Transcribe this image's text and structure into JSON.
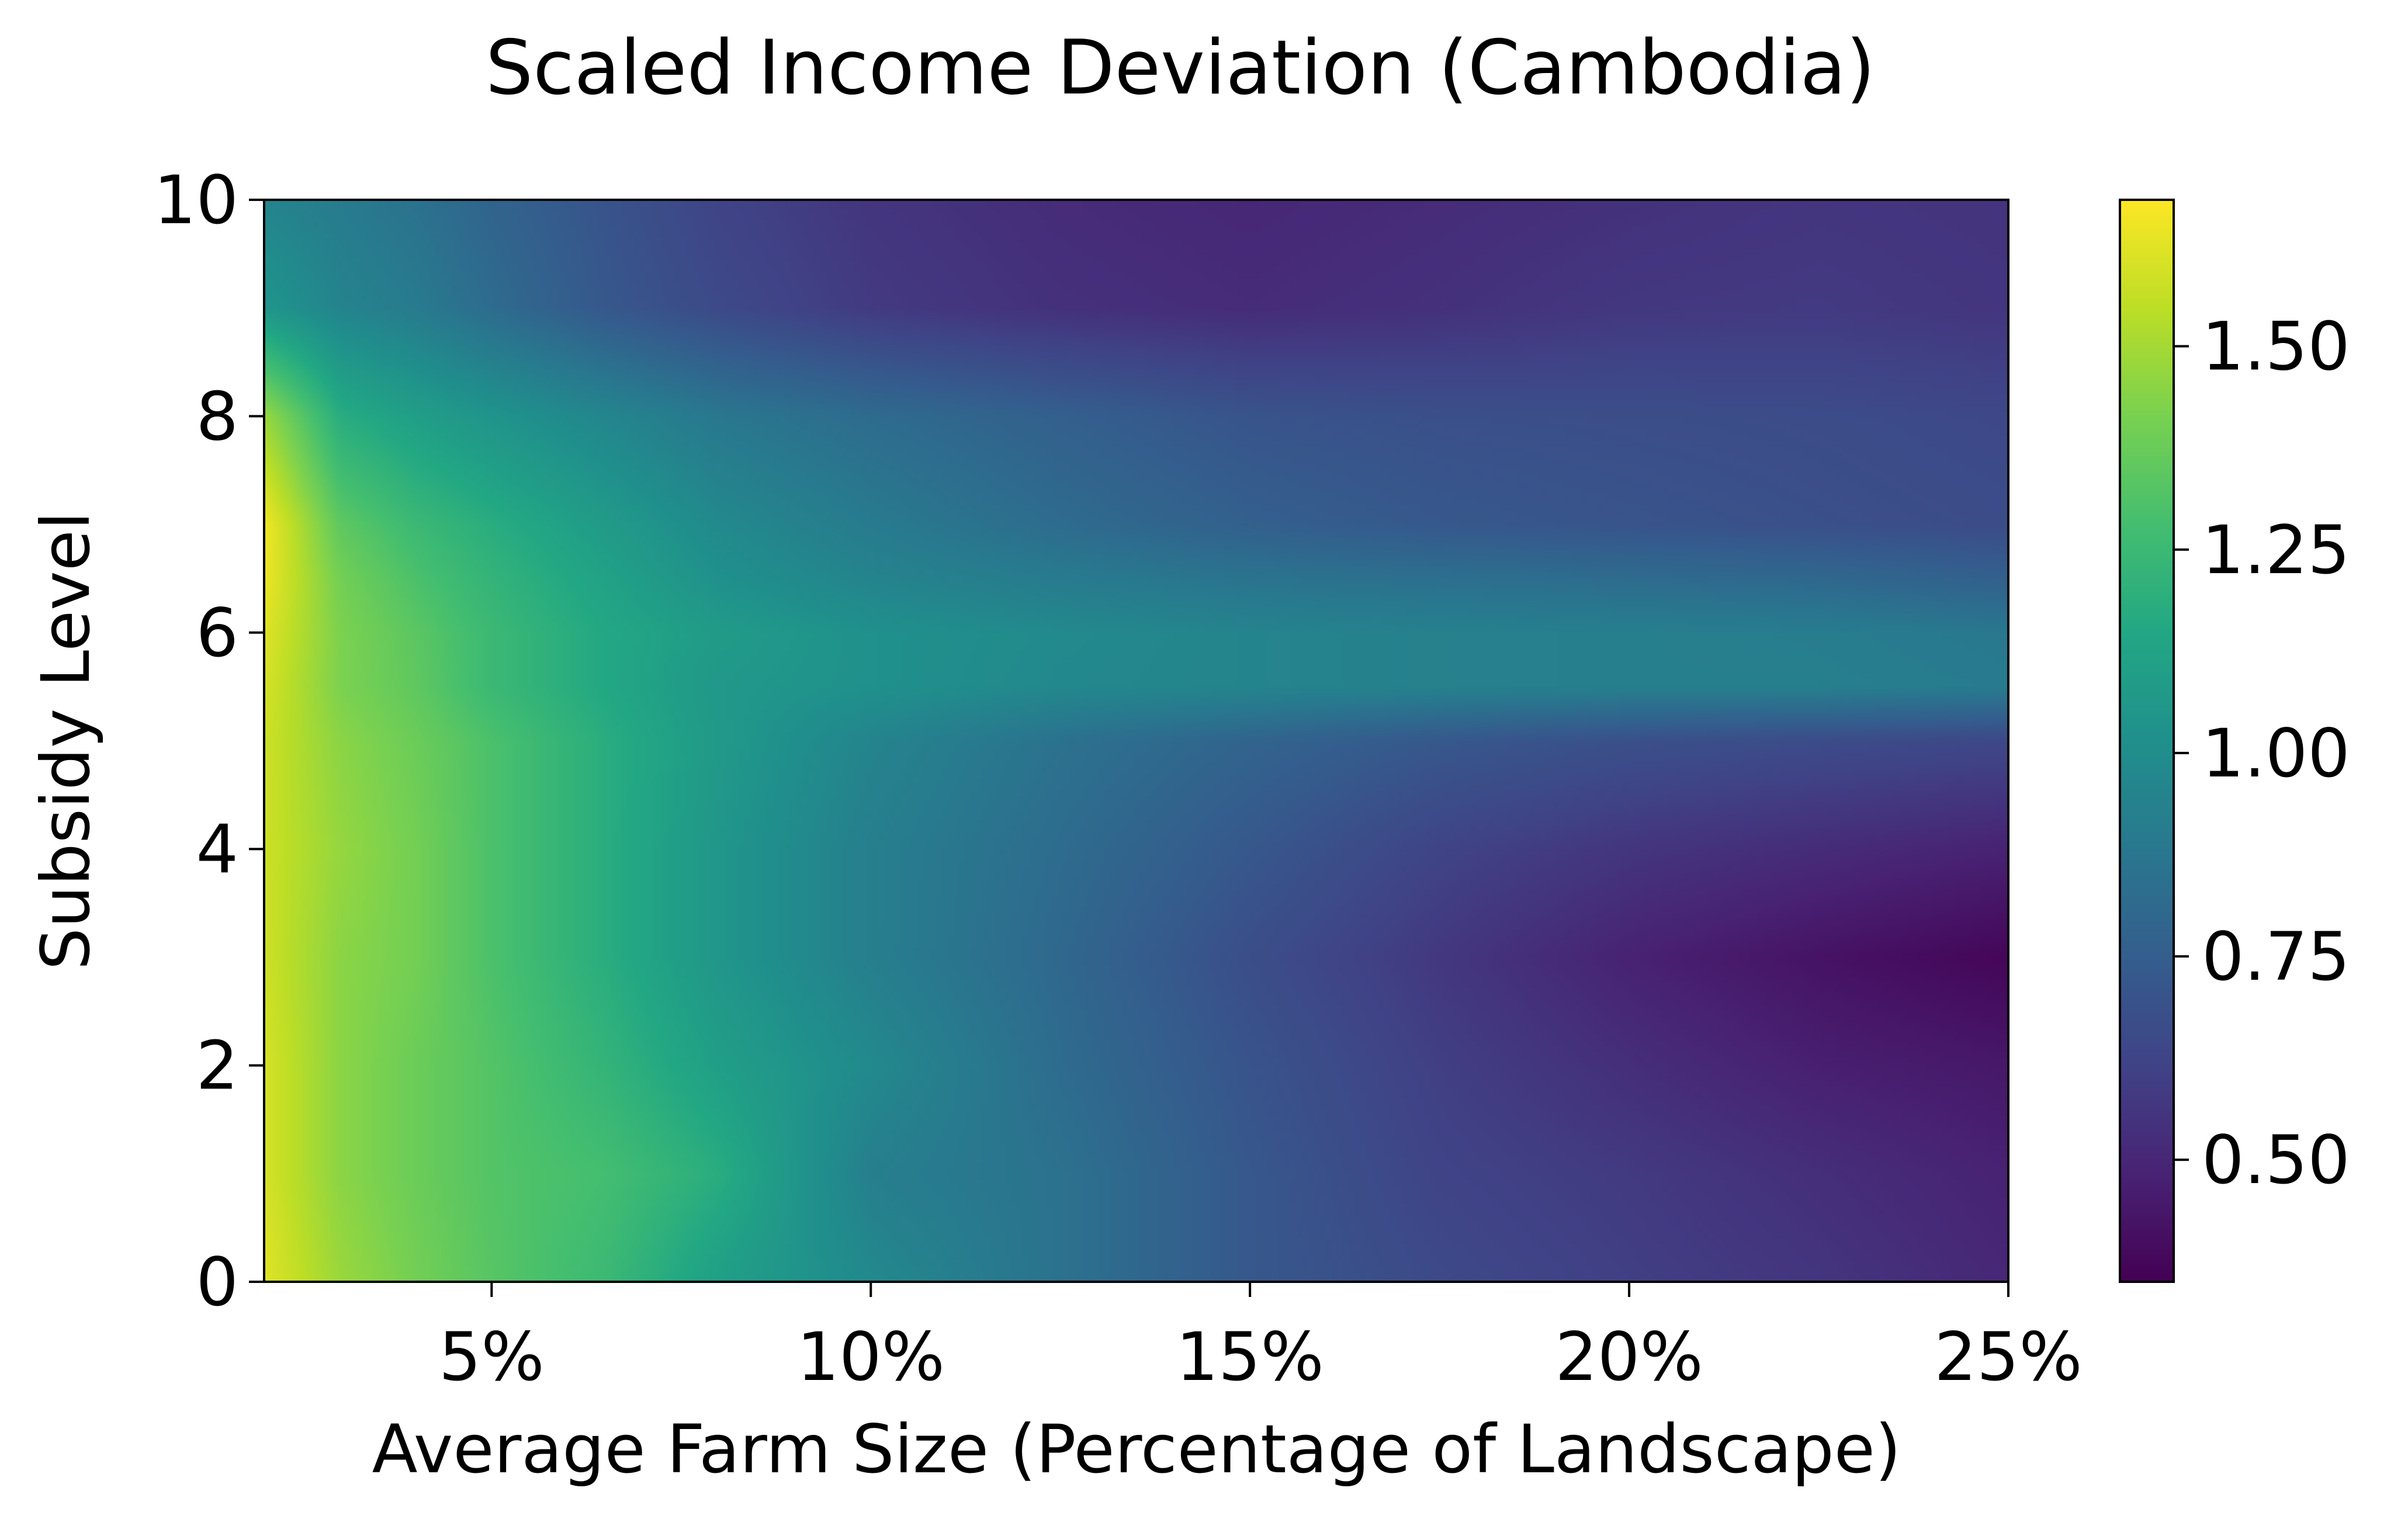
{
  "chart_data": {
    "type": "heatmap",
    "title": "Scaled Income Deviation (Cambodia)",
    "xlabel": "Average Farm Size (Percentage of Landscape)",
    "ylabel": "Subsidy Level",
    "xlim": [
      2,
      25
    ],
    "ylim": [
      0,
      10
    ],
    "xticks": [
      5,
      10,
      15,
      20,
      25
    ],
    "xtick_labels": [
      "5%",
      "10%",
      "15%",
      "20%",
      "25%"
    ],
    "yticks": [
      0,
      2,
      4,
      6,
      8,
      10
    ],
    "ytick_labels": [
      "0",
      "2",
      "4",
      "6",
      "8",
      "10"
    ],
    "colormap": "viridis",
    "color_range": [
      0.35,
      1.68
    ],
    "colorbar_ticks": [
      0.5,
      0.75,
      1.0,
      1.25,
      1.5
    ],
    "colorbar_tick_labels": [
      "0.50",
      "0.75",
      "1.00",
      "1.25",
      "1.50"
    ],
    "x": [
      2,
      3,
      4,
      5,
      6.5,
      8,
      10,
      12.5,
      15,
      17.5,
      20,
      22.5,
      25
    ],
    "y": [
      0,
      1,
      2,
      3,
      4,
      5,
      5.5,
      6,
      6.5,
      7,
      8,
      9,
      10
    ],
    "z": [
      [
        1.62,
        1.48,
        1.4,
        1.33,
        1.25,
        1.1,
        0.98,
        0.85,
        0.72,
        0.65,
        0.6,
        0.56,
        0.5
      ],
      [
        1.6,
        1.45,
        1.38,
        1.32,
        1.28,
        1.18,
        0.92,
        0.85,
        0.72,
        0.62,
        0.58,
        0.53,
        0.48
      ],
      [
        1.6,
        1.45,
        1.38,
        1.32,
        1.22,
        1.1,
        0.98,
        0.82,
        0.7,
        0.6,
        0.53,
        0.47,
        0.44
      ],
      [
        1.58,
        1.45,
        1.4,
        1.3,
        1.18,
        1.05,
        0.92,
        0.8,
        0.67,
        0.57,
        0.48,
        0.42,
        0.37
      ],
      [
        1.58,
        1.47,
        1.4,
        1.3,
        1.18,
        1.05,
        0.92,
        0.82,
        0.72,
        0.62,
        0.56,
        0.52,
        0.48
      ],
      [
        1.58,
        1.45,
        1.38,
        1.3,
        1.18,
        1.07,
        0.95,
        0.85,
        0.78,
        0.72,
        0.68,
        0.66,
        0.64
      ],
      [
        1.6,
        1.42,
        1.35,
        1.25,
        1.15,
        1.06,
        1.02,
        0.97,
        0.95,
        0.93,
        0.92,
        0.92,
        0.9
      ],
      [
        1.62,
        1.42,
        1.34,
        1.25,
        1.15,
        1.08,
        1.02,
        0.98,
        0.95,
        0.93,
        0.92,
        0.91,
        0.88
      ],
      [
        1.65,
        1.4,
        1.3,
        1.22,
        1.12,
        1.02,
        0.95,
        0.9,
        0.86,
        0.84,
        0.82,
        0.8,
        0.76
      ],
      [
        1.66,
        1.35,
        1.25,
        1.18,
        1.08,
        0.98,
        0.9,
        0.82,
        0.76,
        0.72,
        0.7,
        0.68,
        0.66
      ],
      [
        1.48,
        1.18,
        1.1,
        1.04,
        0.96,
        0.88,
        0.82,
        0.76,
        0.7,
        0.68,
        0.67,
        0.66,
        0.64
      ],
      [
        1.05,
        0.95,
        0.9,
        0.82,
        0.72,
        0.65,
        0.58,
        0.54,
        0.52,
        0.54,
        0.57,
        0.58,
        0.56
      ],
      [
        0.95,
        0.9,
        0.85,
        0.78,
        0.7,
        0.62,
        0.56,
        0.52,
        0.5,
        0.52,
        0.54,
        0.56,
        0.55
      ]
    ]
  }
}
